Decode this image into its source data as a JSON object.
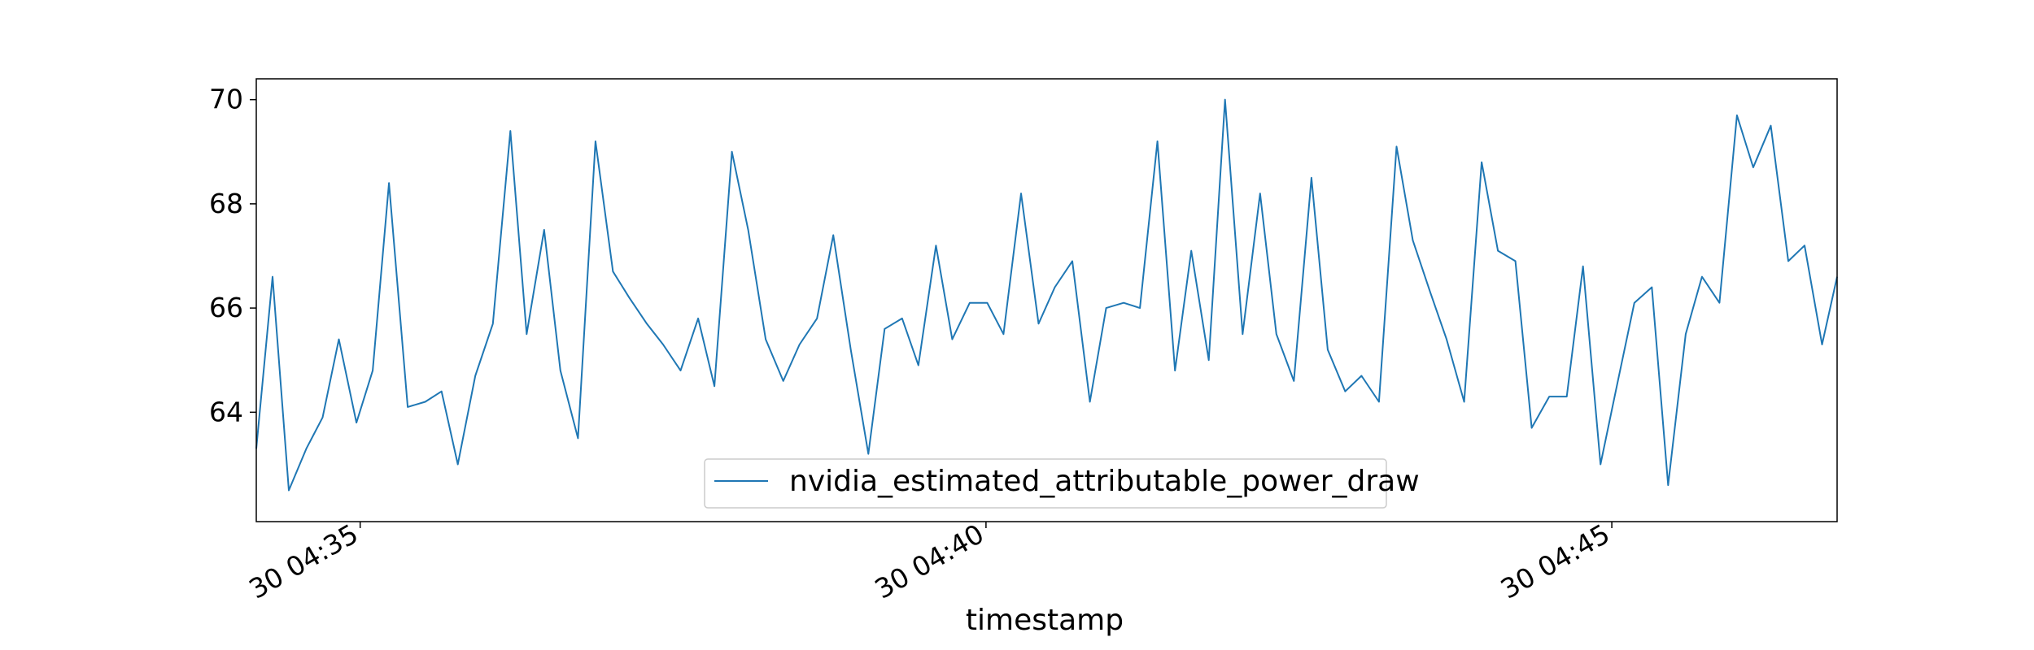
{
  "chart_data": {
    "type": "line",
    "title": "",
    "xlabel": "timestamp",
    "ylabel": "",
    "x_tick_labels": [
      "30 04:35",
      "30 04:40",
      "30 04:45"
    ],
    "x_ticks_minutes": [
      35,
      40,
      45
    ],
    "x_range_minutes": [
      34.17,
      46.8
    ],
    "y_ticks": [
      64,
      66,
      68,
      70
    ],
    "ylim": [
      61.9,
      70.4
    ],
    "grid": false,
    "legend": {
      "position": "bottom-center"
    },
    "colors": {
      "series": "#1f77b4",
      "frame": "#000000",
      "background": "#ffffff"
    },
    "series": [
      {
        "name": "nvidia_estimated_attributable_power_draw",
        "x_minutes": [
          34.17,
          34.3,
          34.43,
          34.57,
          34.7,
          34.83,
          34.97,
          35.1,
          35.23,
          35.38,
          35.52,
          35.65,
          35.78,
          35.92,
          36.06,
          36.2,
          36.33,
          36.47,
          36.6,
          36.74,
          36.88,
          37.02,
          37.15,
          37.29,
          37.42,
          37.56,
          37.7,
          37.83,
          37.97,
          38.1,
          38.24,
          38.38,
          38.51,
          38.65,
          38.78,
          38.92,
          39.06,
          39.19,
          39.33,
          39.46,
          39.6,
          39.73,
          39.87,
          40.01,
          40.14,
          40.28,
          40.42,
          40.55,
          40.69,
          40.83,
          40.96,
          41.1,
          41.23,
          41.37,
          41.51,
          41.64,
          41.78,
          41.91,
          42.05,
          42.19,
          42.32,
          42.46,
          42.6,
          42.73,
          42.87,
          43.0,
          43.14,
          43.28,
          43.41,
          43.55,
          43.68,
          43.82,
          43.96,
          44.09,
          44.23,
          44.36,
          44.5,
          44.64,
          44.77,
          44.91,
          45.04,
          45.18,
          45.32,
          45.45,
          45.59,
          45.72,
          45.86,
          46.0,
          46.13,
          46.27,
          46.41,
          46.54,
          46.68,
          46.8
        ],
        "values": [
          63.3,
          66.6,
          62.5,
          63.3,
          63.9,
          65.4,
          63.8,
          64.8,
          68.4,
          64.1,
          64.2,
          64.4,
          63.0,
          64.7,
          65.7,
          69.4,
          65.5,
          67.5,
          64.8,
          63.5,
          69.2,
          66.7,
          66.2,
          65.7,
          65.3,
          64.8,
          65.8,
          64.5,
          69.0,
          67.5,
          65.4,
          64.6,
          65.3,
          65.8,
          67.4,
          65.2,
          63.2,
          65.6,
          65.8,
          64.9,
          67.2,
          65.4,
          66.1,
          66.1,
          65.5,
          68.2,
          65.7,
          66.4,
          66.9,
          64.2,
          66.0,
          66.1,
          66.0,
          69.2,
          64.8,
          67.1,
          65.0,
          70.0,
          65.5,
          68.2,
          65.5,
          64.6,
          68.5,
          65.2,
          64.4,
          64.7,
          64.2,
          69.1,
          67.3,
          66.3,
          65.4,
          64.2,
          68.8,
          67.1,
          66.9,
          63.7,
          64.3,
          64.3,
          66.8,
          63.0,
          64.5,
          66.1,
          66.4,
          62.6,
          65.5,
          66.6,
          66.1,
          69.7,
          68.7,
          69.5,
          66.9,
          67.2,
          65.3,
          66.6
        ]
      }
    ]
  }
}
